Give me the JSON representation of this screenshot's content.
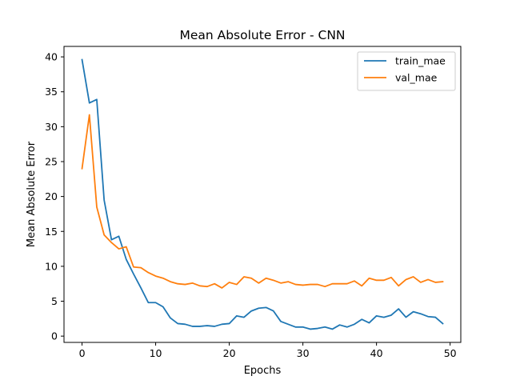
{
  "chart_data": {
    "type": "line",
    "title": "Mean Absolute Error - CNN",
    "xlabel": "Epochs",
    "ylabel": "Mean Absolute Error",
    "xlim": [
      -2.45,
      51.45
    ],
    "ylim": [
      -0.9,
      41.5
    ],
    "xticks": [
      0,
      10,
      20,
      30,
      40,
      50
    ],
    "yticks": [
      0,
      5,
      10,
      15,
      20,
      25,
      30,
      35,
      40
    ],
    "grid": false,
    "legend_position": "top-right",
    "x": [
      0,
      1,
      2,
      3,
      4,
      5,
      6,
      7,
      8,
      9,
      10,
      11,
      12,
      13,
      14,
      15,
      16,
      17,
      18,
      19,
      20,
      21,
      22,
      23,
      24,
      25,
      26,
      27,
      28,
      29,
      30,
      31,
      32,
      33,
      34,
      35,
      36,
      37,
      38,
      39,
      40,
      41,
      42,
      43,
      44,
      45,
      46,
      47,
      48,
      49
    ],
    "series": [
      {
        "name": "train_mae",
        "color": "#1f77b4",
        "values": [
          39.6,
          33.4,
          33.9,
          19.5,
          13.8,
          14.3,
          11.0,
          8.9,
          6.9,
          4.8,
          4.8,
          4.2,
          2.6,
          1.8,
          1.7,
          1.4,
          1.4,
          1.5,
          1.4,
          1.7,
          1.8,
          2.9,
          2.7,
          3.6,
          4.0,
          4.1,
          3.6,
          2.1,
          1.7,
          1.3,
          1.3,
          1.0,
          1.1,
          1.3,
          1.0,
          1.6,
          1.3,
          1.7,
          2.4,
          1.9,
          2.9,
          2.7,
          3.0,
          3.9,
          2.7,
          3.5,
          3.2,
          2.8,
          2.7,
          1.8
        ]
      },
      {
        "name": "val_mae",
        "color": "#ff7f0e",
        "values": [
          24.0,
          31.7,
          18.5,
          14.5,
          13.4,
          12.5,
          12.8,
          9.9,
          9.8,
          9.1,
          8.6,
          8.3,
          7.8,
          7.5,
          7.4,
          7.6,
          7.2,
          7.1,
          7.5,
          6.9,
          7.7,
          7.4,
          8.5,
          8.3,
          7.6,
          8.3,
          8.0,
          7.6,
          7.8,
          7.4,
          7.3,
          7.4,
          7.4,
          7.1,
          7.5,
          7.5,
          7.5,
          7.9,
          7.2,
          8.3,
          8.0,
          8.0,
          8.4,
          7.2,
          8.1,
          8.5,
          7.7,
          8.1,
          7.7,
          7.8
        ]
      }
    ]
  }
}
